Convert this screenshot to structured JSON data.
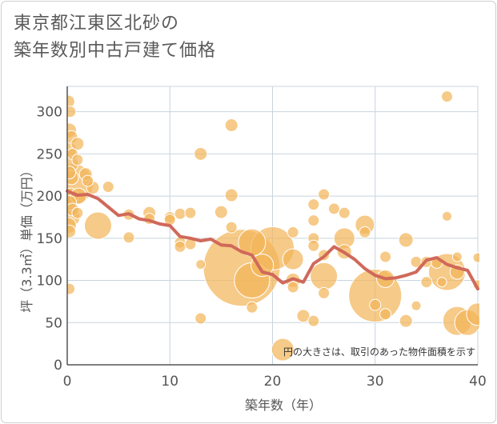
{
  "title": {
    "line1": "東京都江東区北砂の",
    "line2": "築年数別中古戸建て価格"
  },
  "note": "円の大きさは、取引のあった物件面積を示す",
  "colors": {
    "bubble": "#f2b65a",
    "bubble_stroke": "#ffffff",
    "line": "#d0695a",
    "grid": "#c8d4de",
    "text": "#555555"
  },
  "chart_data": {
    "type": "scatter",
    "title": "東京都江東区北砂の築年数別中古戸建て価格",
    "xlabel": "築年数（年）",
    "ylabel": "坪（3.3㎡）単価（万円）",
    "xlim": [
      0,
      40
    ],
    "ylim": [
      0,
      330
    ],
    "xticks": [
      0,
      10,
      20,
      30,
      40
    ],
    "yticks": [
      0,
      50,
      100,
      150,
      200,
      250,
      300
    ],
    "grid": true,
    "bubbles": [
      {
        "x": 0.1,
        "y": 312,
        "s": 8
      },
      {
        "x": 0.3,
        "y": 300,
        "s": 7
      },
      {
        "x": 0.2,
        "y": 278,
        "s": 9
      },
      {
        "x": 0.4,
        "y": 270,
        "s": 8
      },
      {
        "x": 0.2,
        "y": 255,
        "s": 9
      },
      {
        "x": 0.5,
        "y": 250,
        "s": 7
      },
      {
        "x": 0.3,
        "y": 238,
        "s": 10
      },
      {
        "x": 0.2,
        "y": 228,
        "s": 8
      },
      {
        "x": 0.4,
        "y": 222,
        "s": 9
      },
      {
        "x": 0.5,
        "y": 214,
        "s": 26
      },
      {
        "x": 0.3,
        "y": 200,
        "s": 10
      },
      {
        "x": 0.2,
        "y": 192,
        "s": 9
      },
      {
        "x": 0.5,
        "y": 184,
        "s": 8
      },
      {
        "x": 0.3,
        "y": 175,
        "s": 12
      },
      {
        "x": 0.1,
        "y": 165,
        "s": 10
      },
      {
        "x": 0.2,
        "y": 158,
        "s": 8
      },
      {
        "x": 0.2,
        "y": 90,
        "s": 7
      },
      {
        "x": 1.0,
        "y": 262,
        "s": 8
      },
      {
        "x": 1.0,
        "y": 243,
        "s": 7
      },
      {
        "x": 1.1,
        "y": 200,
        "s": 10
      },
      {
        "x": 1.0,
        "y": 180,
        "s": 7
      },
      {
        "x": 1.8,
        "y": 226,
        "s": 8
      },
      {
        "x": 2.0,
        "y": 218,
        "s": 7
      },
      {
        "x": 2.5,
        "y": 210,
        "s": 8
      },
      {
        "x": 3.0,
        "y": 165,
        "s": 17
      },
      {
        "x": 4.0,
        "y": 211,
        "s": 7
      },
      {
        "x": 6.0,
        "y": 178,
        "s": 7
      },
      {
        "x": 6.0,
        "y": 151,
        "s": 7
      },
      {
        "x": 8.0,
        "y": 180,
        "s": 8
      },
      {
        "x": 8.0,
        "y": 173,
        "s": 7
      },
      {
        "x": 10.0,
        "y": 175,
        "s": 7
      },
      {
        "x": 10.0,
        "y": 172,
        "s": 7
      },
      {
        "x": 11.0,
        "y": 179,
        "s": 7
      },
      {
        "x": 11.0,
        "y": 145,
        "s": 7
      },
      {
        "x": 11.0,
        "y": 140,
        "s": 7
      },
      {
        "x": 12.0,
        "y": 180,
        "s": 7
      },
      {
        "x": 12.0,
        "y": 143,
        "s": 7
      },
      {
        "x": 13.0,
        "y": 250,
        "s": 8
      },
      {
        "x": 13.0,
        "y": 119,
        "s": 6
      },
      {
        "x": 13.0,
        "y": 55,
        "s": 7
      },
      {
        "x": 15.0,
        "y": 181,
        "s": 8
      },
      {
        "x": 16.0,
        "y": 284,
        "s": 8
      },
      {
        "x": 16.0,
        "y": 201,
        "s": 8
      },
      {
        "x": 16.0,
        "y": 163,
        "s": 7
      },
      {
        "x": 17.0,
        "y": 115,
        "s": 48
      },
      {
        "x": 18.0,
        "y": 145,
        "s": 17
      },
      {
        "x": 18.0,
        "y": 100,
        "s": 22
      },
      {
        "x": 18.0,
        "y": 68,
        "s": 7
      },
      {
        "x": 19.0,
        "y": 118,
        "s": 14
      },
      {
        "x": 20.0,
        "y": 138,
        "s": 27
      },
      {
        "x": 21.0,
        "y": 18,
        "s": 14
      },
      {
        "x": 22.0,
        "y": 157,
        "s": 7
      },
      {
        "x": 22.0,
        "y": 125,
        "s": 13
      },
      {
        "x": 22.0,
        "y": 100,
        "s": 9
      },
      {
        "x": 22.0,
        "y": 92,
        "s": 7
      },
      {
        "x": 23.0,
        "y": 58,
        "s": 8
      },
      {
        "x": 24.0,
        "y": 52,
        "s": 7
      },
      {
        "x": 24.0,
        "y": 190,
        "s": 7
      },
      {
        "x": 24.0,
        "y": 171,
        "s": 7
      },
      {
        "x": 24.0,
        "y": 150,
        "s": 7
      },
      {
        "x": 24.0,
        "y": 141,
        "s": 7
      },
      {
        "x": 25.0,
        "y": 202,
        "s": 7
      },
      {
        "x": 25.0,
        "y": 130,
        "s": 7
      },
      {
        "x": 25.0,
        "y": 105,
        "s": 17
      },
      {
        "x": 25.0,
        "y": 85,
        "s": 7
      },
      {
        "x": 26.0,
        "y": 185,
        "s": 7
      },
      {
        "x": 27.0,
        "y": 180,
        "s": 7
      },
      {
        "x": 27.0,
        "y": 150,
        "s": 13
      },
      {
        "x": 27.0,
        "y": 134,
        "s": 9
      },
      {
        "x": 29.0,
        "y": 166,
        "s": 12
      },
      {
        "x": 29.0,
        "y": 157,
        "s": 7
      },
      {
        "x": 30.0,
        "y": 82,
        "s": 33
      },
      {
        "x": 30.0,
        "y": 71,
        "s": 7
      },
      {
        "x": 31.0,
        "y": 128,
        "s": 7
      },
      {
        "x": 31.0,
        "y": 102,
        "s": 11
      },
      {
        "x": 31.0,
        "y": 60,
        "s": 7
      },
      {
        "x": 33.0,
        "y": 148,
        "s": 9
      },
      {
        "x": 33.0,
        "y": 52,
        "s": 8
      },
      {
        "x": 34.0,
        "y": 122,
        "s": 7
      },
      {
        "x": 34.0,
        "y": 70,
        "s": 6
      },
      {
        "x": 35.0,
        "y": 122,
        "s": 7
      },
      {
        "x": 35.0,
        "y": 98,
        "s": 7
      },
      {
        "x": 36.0,
        "y": 121,
        "s": 7
      },
      {
        "x": 36.5,
        "y": 98,
        "s": 6
      },
      {
        "x": 37.0,
        "y": 318,
        "s": 7
      },
      {
        "x": 37.0,
        "y": 176,
        "s": 6
      },
      {
        "x": 37.0,
        "y": 110,
        "s": 23
      },
      {
        "x": 38.0,
        "y": 128,
        "s": 6
      },
      {
        "x": 38.0,
        "y": 110,
        "s": 9
      },
      {
        "x": 38.0,
        "y": 52,
        "s": 18
      },
      {
        "x": 39.0,
        "y": 50,
        "s": 16
      },
      {
        "x": 40.0,
        "y": 127,
        "s": 6
      },
      {
        "x": 40.0,
        "y": 95,
        "s": 6
      },
      {
        "x": 40.0,
        "y": 60,
        "s": 14
      }
    ],
    "series": [
      {
        "type": "line",
        "x": [
          0,
          1,
          2,
          3,
          4,
          5,
          6,
          7,
          8,
          9,
          10,
          11,
          12,
          13,
          14,
          15,
          16,
          17,
          18,
          19,
          20,
          21,
          22,
          23,
          24,
          25,
          26,
          27,
          28,
          29,
          30,
          31,
          32,
          33,
          34,
          35,
          36,
          37,
          38,
          39,
          40
        ],
        "values": [
          206,
          201,
          202,
          197,
          187,
          177,
          179,
          173,
          171,
          167,
          165,
          152,
          150,
          147,
          149,
          142,
          141,
          134,
          130,
          110,
          107,
          97,
          102,
          98,
          120,
          128,
          140,
          133,
          125,
          114,
          106,
          102,
          103,
          106,
          110,
          124,
          127,
          119,
          115,
          112,
          90
        ]
      }
    ]
  }
}
